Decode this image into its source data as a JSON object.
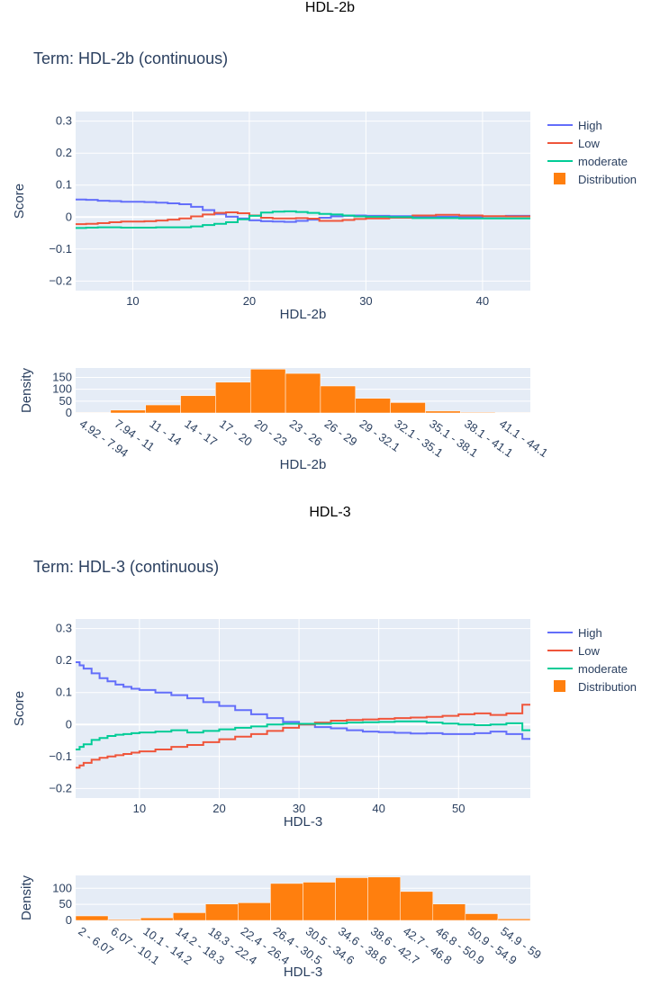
{
  "colors": {
    "high": "#636efa",
    "low": "#ef553b",
    "moderate": "#00cc96",
    "distribution": "#ff7f0e",
    "plot_bg": "#e5ecf6",
    "grid": "#ffffff",
    "text": "#2a3f5f"
  },
  "legend": {
    "high": "High",
    "low": "Low",
    "moderate": "moderate",
    "distribution": "Distribution"
  },
  "sections": [
    {
      "header": "HDL-2b",
      "term_title": "Term: HDL-2b (continuous)"
    },
    {
      "header": "HDL-3",
      "term_title": "Term: HDL-3 (continuous)"
    }
  ],
  "chart_data": [
    {
      "type": "line",
      "name": "HDL-2b score",
      "xlabel": "HDL-2b",
      "ylabel": "Score",
      "xlim": [
        5.1,
        44.1
      ],
      "ylim": [
        -0.23,
        0.33
      ],
      "xticks": [
        10,
        20,
        30,
        40
      ],
      "yticks": [
        -0.2,
        -0.1,
        0,
        0.1,
        0.2,
        0.3
      ],
      "ytick_labels": [
        "−0.2",
        "−0.1",
        "0",
        "0.1",
        "0.2",
        "0.3"
      ],
      "series": [
        {
          "name": "High",
          "key": "high",
          "x": [
            5.1,
            6,
            7,
            8,
            9,
            10,
            11,
            12,
            13,
            14,
            15,
            16,
            17,
            18,
            19,
            20,
            21,
            22,
            23,
            24,
            25,
            26,
            27,
            28,
            29,
            30,
            32,
            34,
            36,
            38,
            40,
            42,
            44.1
          ],
          "y": [
            0.055,
            0.054,
            0.051,
            0.05,
            0.048,
            0.048,
            0.047,
            0.045,
            0.043,
            0.04,
            0.032,
            0.022,
            0.01,
            0.001,
            -0.004,
            -0.01,
            -0.013,
            -0.014,
            -0.015,
            -0.012,
            -0.008,
            -0.002,
            0.002,
            0.004,
            0.005,
            0.004,
            0.003,
            0.002,
            0.001,
            0.0,
            0.002,
            0.004,
            0.006
          ]
        },
        {
          "name": "Low",
          "key": "low",
          "x": [
            5.1,
            6,
            7,
            8,
            9,
            10,
            11,
            12,
            13,
            14,
            15,
            16,
            17,
            18,
            19,
            20,
            21,
            22,
            23,
            24,
            25,
            26,
            27,
            28,
            29,
            30,
            32,
            34,
            36,
            38,
            40,
            42,
            44.1
          ],
          "y": [
            -0.022,
            -0.021,
            -0.019,
            -0.016,
            -0.014,
            -0.014,
            -0.013,
            -0.011,
            -0.008,
            -0.004,
            0.002,
            0.008,
            0.013,
            0.015,
            0.012,
            0.005,
            -0.002,
            -0.004,
            -0.004,
            -0.003,
            -0.005,
            -0.012,
            -0.012,
            -0.009,
            -0.006,
            -0.004,
            -0.002,
            0.005,
            0.007,
            0.005,
            0.003,
            0.002,
            0.002
          ]
        },
        {
          "name": "moderate",
          "key": "moderate",
          "x": [
            5.1,
            6,
            7,
            8,
            9,
            10,
            11,
            12,
            13,
            14,
            15,
            16,
            17,
            18,
            19,
            20,
            21,
            22,
            23,
            24,
            25,
            26,
            27,
            28,
            29,
            30,
            32,
            34,
            36,
            38,
            40,
            42,
            44.1
          ],
          "y": [
            -0.034,
            -0.033,
            -0.032,
            -0.032,
            -0.033,
            -0.033,
            -0.033,
            -0.032,
            -0.032,
            -0.032,
            -0.029,
            -0.025,
            -0.021,
            -0.016,
            -0.007,
            0.004,
            0.014,
            0.017,
            0.018,
            0.016,
            0.013,
            0.01,
            0.008,
            0.005,
            0.002,
            0.001,
            0.0,
            -0.003,
            -0.003,
            -0.004,
            -0.004,
            -0.004,
            -0.004
          ]
        }
      ]
    },
    {
      "type": "bar",
      "name": "HDL-2b distribution",
      "xlabel": "HDL-2b",
      "ylabel": "Density",
      "ylim": [
        0,
        190
      ],
      "yticks": [
        0,
        50,
        100,
        150
      ],
      "categories": [
        "4.92 - 7.94",
        "7.94 - 11",
        "11 - 14",
        "14 - 17",
        "17 - 20",
        "20 - 23",
        "23 - 26",
        "26 - 29",
        "29 - 32.1",
        "32.1 - 35.1",
        "35.1 - 38.1",
        "38.1 - 41.1",
        "41.1 - 44.1"
      ],
      "values": [
        2,
        12,
        34,
        73,
        130,
        185,
        167,
        114,
        62,
        44,
        8,
        3,
        2
      ]
    },
    {
      "type": "line",
      "name": "HDL-3 score",
      "xlabel": "HDL-3",
      "ylabel": "Score",
      "xlim": [
        2.0,
        59.0
      ],
      "ylim": [
        -0.23,
        0.33
      ],
      "xticks": [
        10,
        20,
        30,
        40,
        50
      ],
      "yticks": [
        -0.2,
        -0.1,
        0,
        0.1,
        0.2,
        0.3
      ],
      "ytick_labels": [
        "−0.2",
        "−0.1",
        "0",
        "0.1",
        "0.2",
        "0.3"
      ],
      "series": [
        {
          "name": "High",
          "key": "high",
          "x": [
            2,
            2.5,
            3,
            4,
            5,
            6,
            7,
            8,
            9,
            10,
            12,
            14,
            16,
            18,
            20,
            22,
            24,
            26,
            28,
            30,
            32,
            34,
            36,
            38,
            40,
            42,
            44,
            46,
            48,
            50,
            52,
            54,
            56,
            58,
            59
          ],
          "y": [
            0.195,
            0.185,
            0.175,
            0.16,
            0.145,
            0.135,
            0.125,
            0.118,
            0.112,
            0.108,
            0.1,
            0.092,
            0.082,
            0.07,
            0.058,
            0.045,
            0.032,
            0.02,
            0.008,
            0.0,
            -0.008,
            -0.012,
            -0.018,
            -0.022,
            -0.024,
            -0.026,
            -0.028,
            -0.027,
            -0.03,
            -0.03,
            -0.027,
            -0.022,
            -0.03,
            -0.045,
            -0.045
          ]
        },
        {
          "name": "Low",
          "key": "low",
          "x": [
            2,
            2.5,
            3,
            4,
            5,
            6,
            7,
            8,
            9,
            10,
            12,
            14,
            16,
            18,
            20,
            22,
            24,
            26,
            28,
            30,
            32,
            34,
            36,
            38,
            40,
            42,
            44,
            46,
            48,
            50,
            52,
            54,
            56,
            58,
            59
          ],
          "y": [
            -0.135,
            -0.128,
            -0.12,
            -0.11,
            -0.104,
            -0.1,
            -0.096,
            -0.092,
            -0.088,
            -0.084,
            -0.078,
            -0.07,
            -0.064,
            -0.055,
            -0.046,
            -0.038,
            -0.03,
            -0.02,
            -0.01,
            0.0,
            0.006,
            0.012,
            0.014,
            0.016,
            0.018,
            0.02,
            0.022,
            0.024,
            0.027,
            0.032,
            0.035,
            0.03,
            0.035,
            0.062,
            0.062
          ]
        },
        {
          "name": "moderate",
          "key": "moderate",
          "x": [
            2,
            2.5,
            3,
            4,
            5,
            6,
            7,
            8,
            9,
            10,
            12,
            14,
            16,
            18,
            20,
            22,
            24,
            26,
            28,
            30,
            32,
            34,
            36,
            38,
            40,
            42,
            44,
            46,
            48,
            50,
            52,
            54,
            56,
            58,
            59
          ],
          "y": [
            -0.078,
            -0.07,
            -0.062,
            -0.048,
            -0.042,
            -0.036,
            -0.032,
            -0.03,
            -0.027,
            -0.025,
            -0.022,
            -0.018,
            -0.025,
            -0.02,
            -0.015,
            -0.01,
            -0.006,
            0.0,
            0.002,
            0.002,
            0.002,
            0.004,
            0.006,
            0.007,
            0.008,
            0.01,
            0.01,
            0.006,
            0.003,
            0.0,
            -0.002,
            0.0,
            0.004,
            -0.018,
            -0.018
          ]
        }
      ]
    },
    {
      "type": "bar",
      "name": "HDL-3 distribution",
      "xlabel": "HDL-3",
      "ylabel": "Density",
      "ylim": [
        0,
        140
      ],
      "yticks": [
        0,
        50,
        100
      ],
      "categories": [
        "2 - 6.07",
        "6.07 - 10.1",
        "10.1 - 14.2",
        "14.2 - 18.3",
        "18.3 - 22.4",
        "22.4 - 26.4",
        "26.4 - 30.5",
        "30.5 - 34.6",
        "34.6 - 38.6",
        "38.6 - 42.7",
        "42.7 - 46.8",
        "46.8 - 50.9",
        "50.9 - 54.9",
        "54.9 - 59"
      ],
      "values": [
        14,
        3,
        8,
        24,
        51,
        55,
        115,
        119,
        133,
        135,
        90,
        51,
        21,
        5
      ]
    }
  ]
}
